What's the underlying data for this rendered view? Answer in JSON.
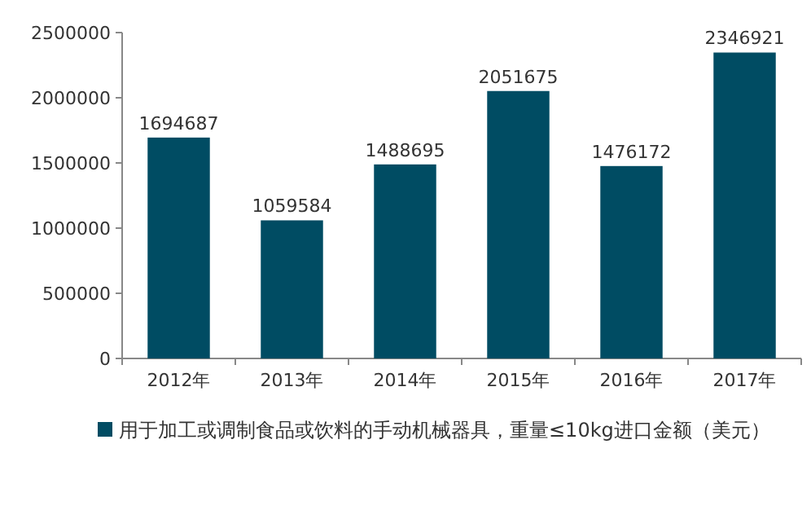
{
  "chart_data": {
    "type": "bar",
    "categories": [
      "2012年",
      "2013年",
      "2014年",
      "2015年",
      "2016年",
      "2017年"
    ],
    "series": [
      {
        "name": "用于加工或调制食品或饮料的手动机械器具，重量≤10kg进口金额（美元）",
        "color": "#004c63",
        "values": [
          1694687,
          1059584,
          1488695,
          2051675,
          1476172,
          2346921
        ]
      }
    ],
    "ylim": [
      0,
      2500000
    ],
    "yticks": [
      0,
      500000,
      1000000,
      1500000,
      2000000,
      2500000
    ],
    "data_labels": true,
    "legend": "bottom",
    "grid": false
  }
}
